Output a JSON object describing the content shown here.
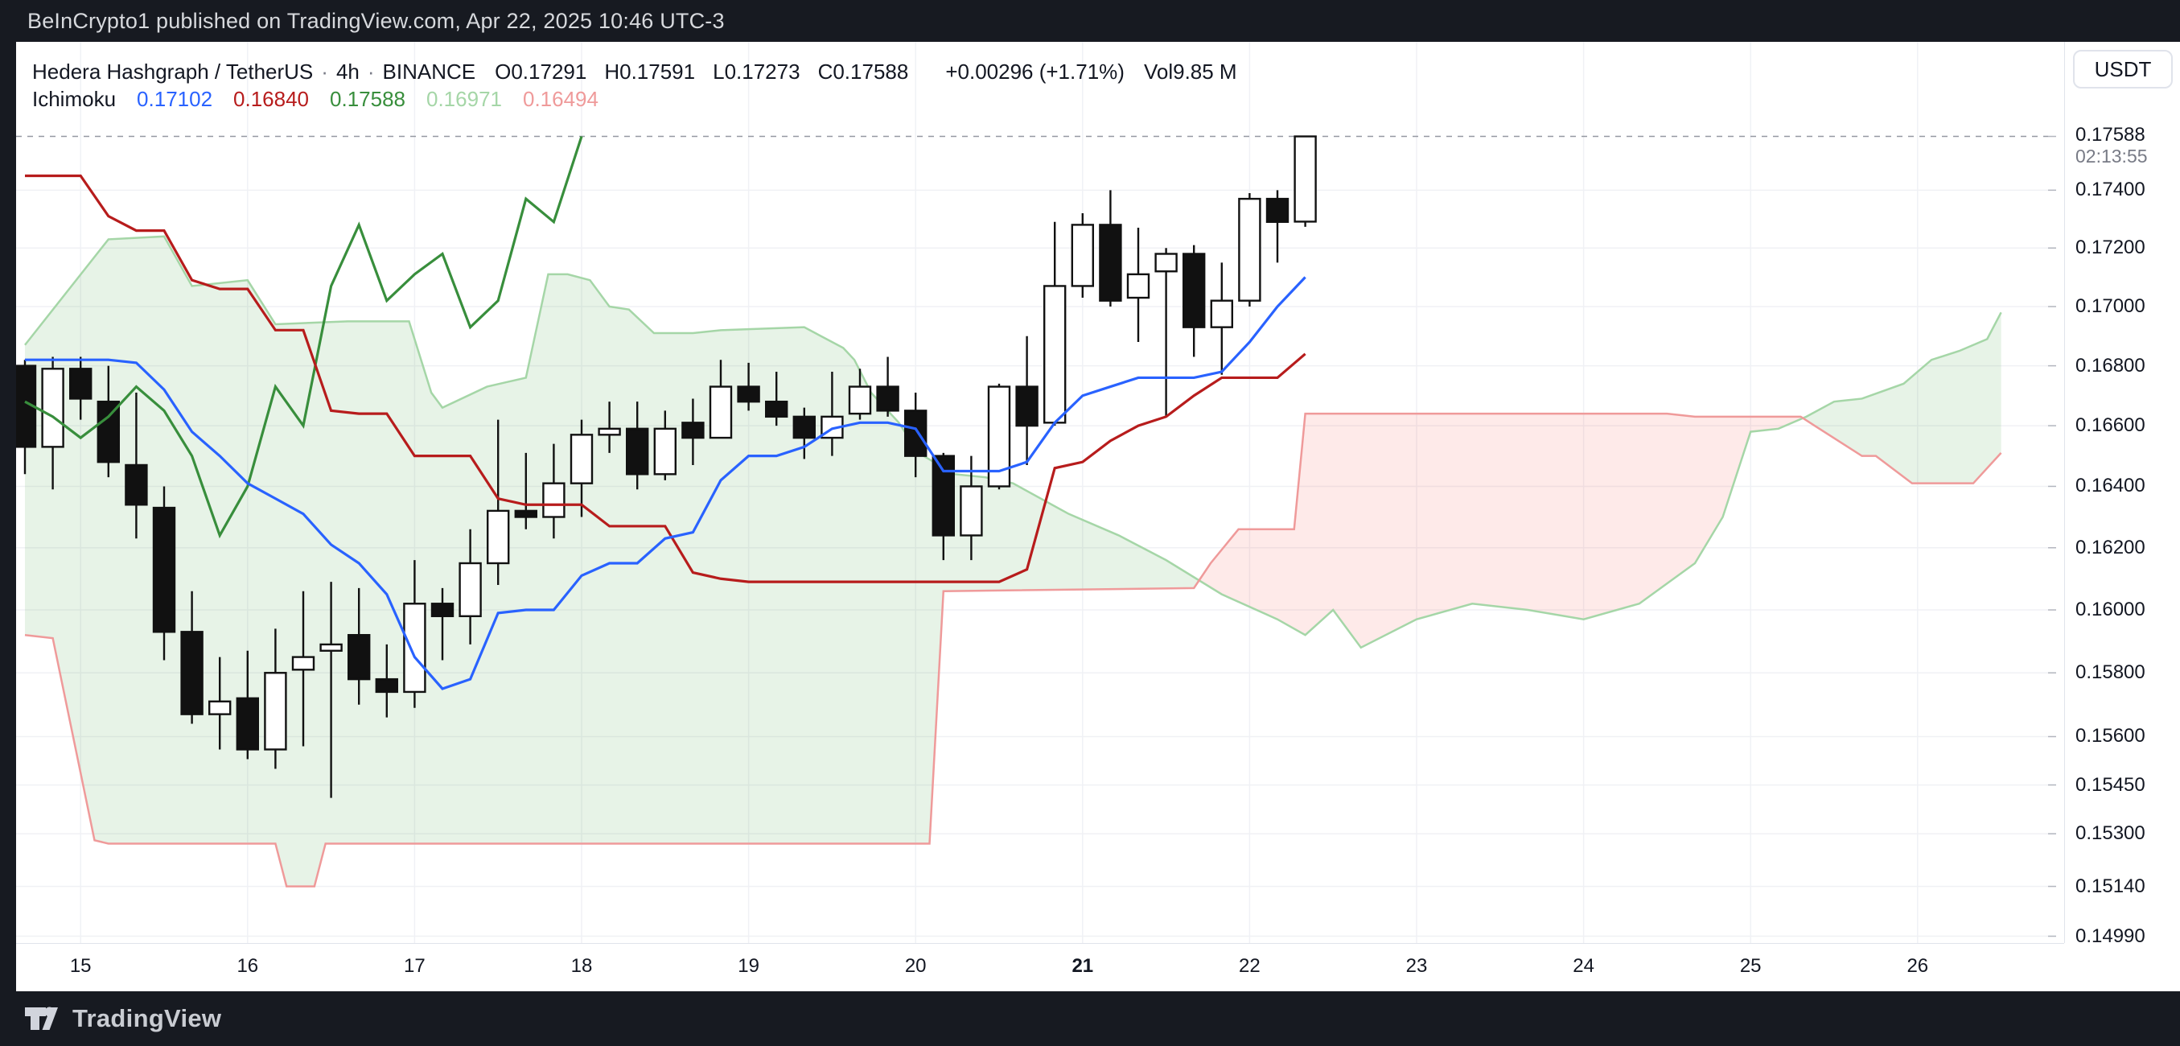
{
  "top_bar": {
    "text": "BeInCrypto1 published on TradingView.com, Apr 22, 2025 10:46 UTC-3"
  },
  "header": {
    "symbol": "Hedera Hashgraph / TetherUS",
    "separator": "·",
    "timeframe": "4h",
    "exchange": "BINANCE",
    "ohlc": [
      {
        "k": "O",
        "v": "0.17291"
      },
      {
        "k": "H",
        "v": "0.17591"
      },
      {
        "k": "L",
        "v": "0.17273"
      },
      {
        "k": "C",
        "v": "0.17588"
      }
    ],
    "change": "+0.00296 (+1.71%)",
    "volume_label": "Vol",
    "volume_value": "9.85 M",
    "indicator": {
      "name": "Ichimoku",
      "values": [
        {
          "text": "0.17102",
          "color": "#2962FF"
        },
        {
          "text": "0.16840",
          "color": "#B71C1C"
        },
        {
          "text": "0.17588",
          "color": "#388E3C"
        },
        {
          "text": "0.16971",
          "color": "#A5D6A7"
        },
        {
          "text": "0.16494",
          "color": "#EF9A9A"
        }
      ]
    }
  },
  "price_axis": {
    "currency": "USDT",
    "last_price": "0.17588",
    "last_price_value": 0.17588,
    "countdown": "02:13:55",
    "ticks": [
      {
        "label": "0.17400",
        "value": 0.174
      },
      {
        "label": "0.17200",
        "value": 0.172
      },
      {
        "label": "0.17000",
        "value": 0.17
      },
      {
        "label": "0.16800",
        "value": 0.168
      },
      {
        "label": "0.16600",
        "value": 0.166
      },
      {
        "label": "0.16400",
        "value": 0.164
      },
      {
        "label": "0.16200",
        "value": 0.162
      },
      {
        "label": "0.16000",
        "value": 0.16
      },
      {
        "label": "0.15800",
        "value": 0.158
      },
      {
        "label": "0.15600",
        "value": 0.156
      },
      {
        "label": "0.15450",
        "value": 0.1545
      },
      {
        "label": "0.15300",
        "value": 0.153
      },
      {
        "label": "0.15140",
        "value": 0.1514
      },
      {
        "label": "0.14990",
        "value": 0.1499
      }
    ]
  },
  "time_axis": {
    "days": [
      {
        "label": "15",
        "bar": 2
      },
      {
        "label": "16",
        "bar": 8
      },
      {
        "label": "17",
        "bar": 14
      },
      {
        "label": "18",
        "bar": 20
      },
      {
        "label": "19",
        "bar": 26
      },
      {
        "label": "20",
        "bar": 32
      },
      {
        "label": "21",
        "bar": 38,
        "bold": true
      },
      {
        "label": "22",
        "bar": 44
      },
      {
        "label": "23",
        "bar": 50
      },
      {
        "label": "24",
        "bar": 56
      },
      {
        "label": "25",
        "bar": 62
      },
      {
        "label": "26",
        "bar": 68
      }
    ]
  },
  "footer": {
    "brand": "TradingView"
  },
  "chart_data": {
    "type": "candlestick",
    "title": "Hedera Hashgraph / TetherUS 4h BINANCE with Ichimoku Cloud",
    "scale": "log",
    "ylim": [
      0.1488,
      0.1776
    ],
    "bars_visible": 47,
    "projection_end_index": 71,
    "candles": [
      [
        0.168,
        0.1682,
        0.1644,
        0.1653
      ],
      [
        0.1653,
        0.1683,
        0.1639,
        0.1679
      ],
      [
        0.1679,
        0.1683,
        0.1662,
        0.1669
      ],
      [
        0.1668,
        0.168,
        0.1643,
        0.1648
      ],
      [
        0.1647,
        0.1671,
        0.1623,
        0.1634
      ],
      [
        0.1633,
        0.164,
        0.1584,
        0.1593
      ],
      [
        0.1593,
        0.1606,
        0.1564,
        0.1567
      ],
      [
        0.1567,
        0.1585,
        0.1556,
        0.1571
      ],
      [
        0.1572,
        0.1587,
        0.1553,
        0.1556
      ],
      [
        0.1556,
        0.1594,
        0.155,
        0.158
      ],
      [
        0.1581,
        0.1606,
        0.1557,
        0.1585
      ],
      [
        0.1587,
        0.1609,
        0.1541,
        0.1589
      ],
      [
        0.1592,
        0.1607,
        0.157,
        0.1578
      ],
      [
        0.1578,
        0.1589,
        0.1566,
        0.1574
      ],
      [
        0.1574,
        0.1616,
        0.1569,
        0.1602
      ],
      [
        0.1602,
        0.1607,
        0.1584,
        0.1598
      ],
      [
        0.1598,
        0.1626,
        0.1589,
        0.1615
      ],
      [
        0.1615,
        0.1662,
        0.1608,
        0.1632
      ],
      [
        0.1632,
        0.1651,
        0.1626,
        0.163
      ],
      [
        0.163,
        0.1654,
        0.1623,
        0.1641
      ],
      [
        0.1641,
        0.1662,
        0.163,
        0.1657
      ],
      [
        0.1657,
        0.1668,
        0.1651,
        0.1659
      ],
      [
        0.1659,
        0.1668,
        0.1639,
        0.1644
      ],
      [
        0.1644,
        0.1665,
        0.1642,
        0.1659
      ],
      [
        0.1661,
        0.1669,
        0.1647,
        0.1656
      ],
      [
        0.1656,
        0.1682,
        0.1656,
        0.1673
      ],
      [
        0.1673,
        0.1681,
        0.1665,
        0.1668
      ],
      [
        0.1668,
        0.1678,
        0.166,
        0.1663
      ],
      [
        0.1663,
        0.1666,
        0.1649,
        0.1656
      ],
      [
        0.1656,
        0.1678,
        0.165,
        0.1663
      ],
      [
        0.1664,
        0.1679,
        0.1662,
        0.1673
      ],
      [
        0.1673,
        0.1683,
        0.1663,
        0.1665
      ],
      [
        0.1665,
        0.1671,
        0.1643,
        0.165
      ],
      [
        0.165,
        0.1651,
        0.1616,
        0.1624
      ],
      [
        0.1624,
        0.165,
        0.1616,
        0.164
      ],
      [
        0.164,
        0.1674,
        0.1639,
        0.1673
      ],
      [
        0.1673,
        0.169,
        0.1647,
        0.166
      ],
      [
        0.1661,
        0.1729,
        0.166,
        0.1707
      ],
      [
        0.1707,
        0.1732,
        0.1703,
        0.1728
      ],
      [
        0.1728,
        0.174,
        0.17,
        0.1702
      ],
      [
        0.1703,
        0.1727,
        0.1688,
        0.1711
      ],
      [
        0.1712,
        0.172,
        0.1663,
        0.1718
      ],
      [
        0.1718,
        0.1721,
        0.1683,
        0.1693
      ],
      [
        0.1693,
        0.1715,
        0.1677,
        0.1702
      ],
      [
        0.1702,
        0.1739,
        0.17,
        0.1737
      ],
      [
        0.1737,
        0.174,
        0.1715,
        0.1729
      ],
      [
        0.17291,
        0.17591,
        0.17273,
        0.17588
      ]
    ],
    "ichimoku": {
      "tenkan": [
        0.1682,
        0.1682,
        0.1682,
        0.1682,
        0.1681,
        0.1672,
        0.1658,
        0.165,
        0.1641,
        0.1636,
        0.1631,
        0.1621,
        0.1615,
        0.1605,
        0.1585,
        0.1575,
        0.1578,
        0.1599,
        0.16,
        0.16,
        0.1611,
        0.1615,
        0.1615,
        0.1623,
        0.1625,
        0.1642,
        0.165,
        0.165,
        0.1653,
        0.1659,
        0.1661,
        0.1661,
        0.1659,
        0.1645,
        0.1645,
        0.1645,
        0.1648,
        0.1661,
        0.167,
        0.1673,
        0.1676,
        0.1676,
        0.1676,
        0.1678,
        0.1688,
        0.17,
        0.171
      ],
      "kijun": [
        0.1745,
        0.1745,
        0.1745,
        0.1731,
        0.1726,
        0.1726,
        0.1709,
        0.1706,
        0.1706,
        0.1692,
        0.1692,
        0.1665,
        0.1664,
        0.1664,
        0.165,
        0.165,
        0.165,
        0.1636,
        0.1634,
        0.1634,
        0.1634,
        0.1627,
        0.1627,
        0.1627,
        0.1612,
        0.161,
        0.1609,
        0.1609,
        0.1609,
        0.1609,
        0.1609,
        0.1609,
        0.1609,
        0.1609,
        0.1609,
        0.1609,
        0.1613,
        0.1646,
        0.1648,
        0.1655,
        0.166,
        0.1663,
        0.167,
        0.1676,
        0.1676,
        0.1676,
        0.1684
      ],
      "chikou_offset": -26,
      "senkou_a": [
        [
          0,
          0.1687
        ],
        [
          3,
          0.1723
        ],
        [
          5,
          0.1724
        ],
        [
          6,
          0.1707
        ],
        [
          8,
          0.1709
        ],
        [
          9,
          0.1694
        ],
        [
          11.6,
          0.1695
        ],
        [
          13.8,
          0.1695
        ],
        [
          14.6,
          0.1671
        ],
        [
          15,
          0.1666
        ],
        [
          16.6,
          0.1673
        ],
        [
          18,
          0.1676
        ],
        [
          18.8,
          0.1711
        ],
        [
          19.5,
          0.1711
        ],
        [
          20.3,
          0.1709
        ],
        [
          21,
          0.17
        ],
        [
          21.7,
          0.1699
        ],
        [
          22.6,
          0.1691
        ],
        [
          24,
          0.1691
        ],
        [
          25,
          0.1692
        ],
        [
          28,
          0.1693
        ],
        [
          29.4,
          0.1686
        ],
        [
          29.8,
          0.1682
        ],
        [
          30.4,
          0.1671
        ],
        [
          31.4,
          0.1661
        ],
        [
          32.1,
          0.1651
        ],
        [
          33.4,
          0.1644
        ],
        [
          34.5,
          0.1643
        ],
        [
          35.5,
          0.1641
        ],
        [
          37.5,
          0.1631
        ],
        [
          39.3,
          0.1624
        ],
        [
          41,
          0.1616
        ],
        [
          43,
          0.1605
        ],
        [
          45,
          0.1597
        ],
        [
          46,
          0.1592
        ],
        [
          47,
          0.16
        ],
        [
          48,
          0.1588
        ],
        [
          50,
          0.1597
        ],
        [
          52,
          0.1602
        ],
        [
          54,
          0.16
        ],
        [
          56,
          0.1597
        ],
        [
          58,
          0.1602
        ],
        [
          60,
          0.1615
        ],
        [
          61,
          0.163
        ],
        [
          62,
          0.1658
        ],
        [
          63,
          0.1659
        ],
        [
          64,
          0.1663
        ],
        [
          65,
          0.1668
        ],
        [
          66,
          0.1669
        ],
        [
          67.5,
          0.1674
        ],
        [
          68.5,
          0.1682
        ],
        [
          69.5,
          0.1685
        ],
        [
          70.5,
          0.1689
        ],
        [
          71,
          0.1698
        ]
      ],
      "senkou_b": [
        [
          0,
          0.1592
        ],
        [
          1,
          0.1591
        ],
        [
          2.5,
          0.1528
        ],
        [
          3,
          0.1527
        ],
        [
          9,
          0.1527
        ],
        [
          9.4,
          0.1514
        ],
        [
          10.4,
          0.1514
        ],
        [
          10.8,
          0.1527
        ],
        [
          32.5,
          0.1527
        ],
        [
          33,
          0.1606
        ],
        [
          42,
          0.1607
        ],
        [
          42.6,
          0.1615
        ],
        [
          43.6,
          0.1626
        ],
        [
          45.6,
          0.1626
        ],
        [
          46,
          0.1664
        ],
        [
          59,
          0.1664
        ],
        [
          60,
          0.1663
        ],
        [
          63.8,
          0.1663
        ],
        [
          64.3,
          0.166
        ],
        [
          66,
          0.165
        ],
        [
          66.5,
          0.165
        ],
        [
          67.8,
          0.1641
        ],
        [
          70,
          0.1641
        ],
        [
          71,
          0.1651
        ]
      ]
    },
    "colors": {
      "up_fill": "#ffffff",
      "down_fill": "#111111",
      "candle_outline": "#111111",
      "tenkan": "#2962FF",
      "kijun": "#B71C1C",
      "chikou": "#388E3C",
      "senkou_a": "#A5D6A7",
      "senkou_b": "#EF9A9A",
      "cloud_green": "rgba(67,160,71,0.13)",
      "cloud_red": "rgba(244,67,54,0.11)",
      "grid": "#F0F1F5",
      "axis_border": "#E0E3EB",
      "price_line": "#9598A1"
    }
  }
}
